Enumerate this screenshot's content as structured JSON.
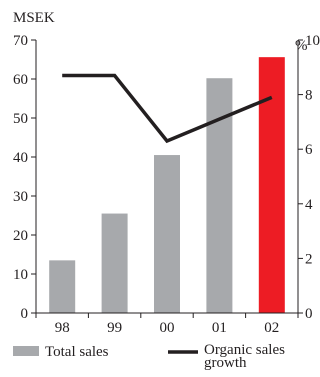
{
  "chart_data": {
    "type": "bar",
    "categories": [
      "98",
      "99",
      "00",
      "01",
      "02"
    ],
    "series": [
      {
        "name": "Total sales",
        "kind": "bar",
        "axis": "left",
        "values": [
          13.5,
          25.5,
          40.5,
          60.2,
          65.6
        ],
        "colors": [
          "#a7a9ac",
          "#a7a9ac",
          "#a7a9ac",
          "#a7a9ac",
          "#ed1c24"
        ]
      },
      {
        "name": "Organic sales growth",
        "name_lines": [
          "Organic sales",
          "growth"
        ],
        "kind": "line",
        "axis": "right",
        "values": [
          8.7,
          8.7,
          6.3,
          7.1,
          7.9
        ],
        "color": "#231f20"
      }
    ],
    "left_axis": {
      "unit_label": "MSEK",
      "min": 0,
      "max": 70,
      "ticks": [
        0,
        10,
        20,
        30,
        40,
        50,
        60,
        70
      ]
    },
    "right_axis": {
      "unit_label": "%",
      "min": 0,
      "max": 10,
      "ticks": [
        0,
        2,
        4,
        6,
        8,
        10
      ]
    },
    "title": "",
    "xlabel": "",
    "grid": false,
    "legend_position": "bottom"
  }
}
